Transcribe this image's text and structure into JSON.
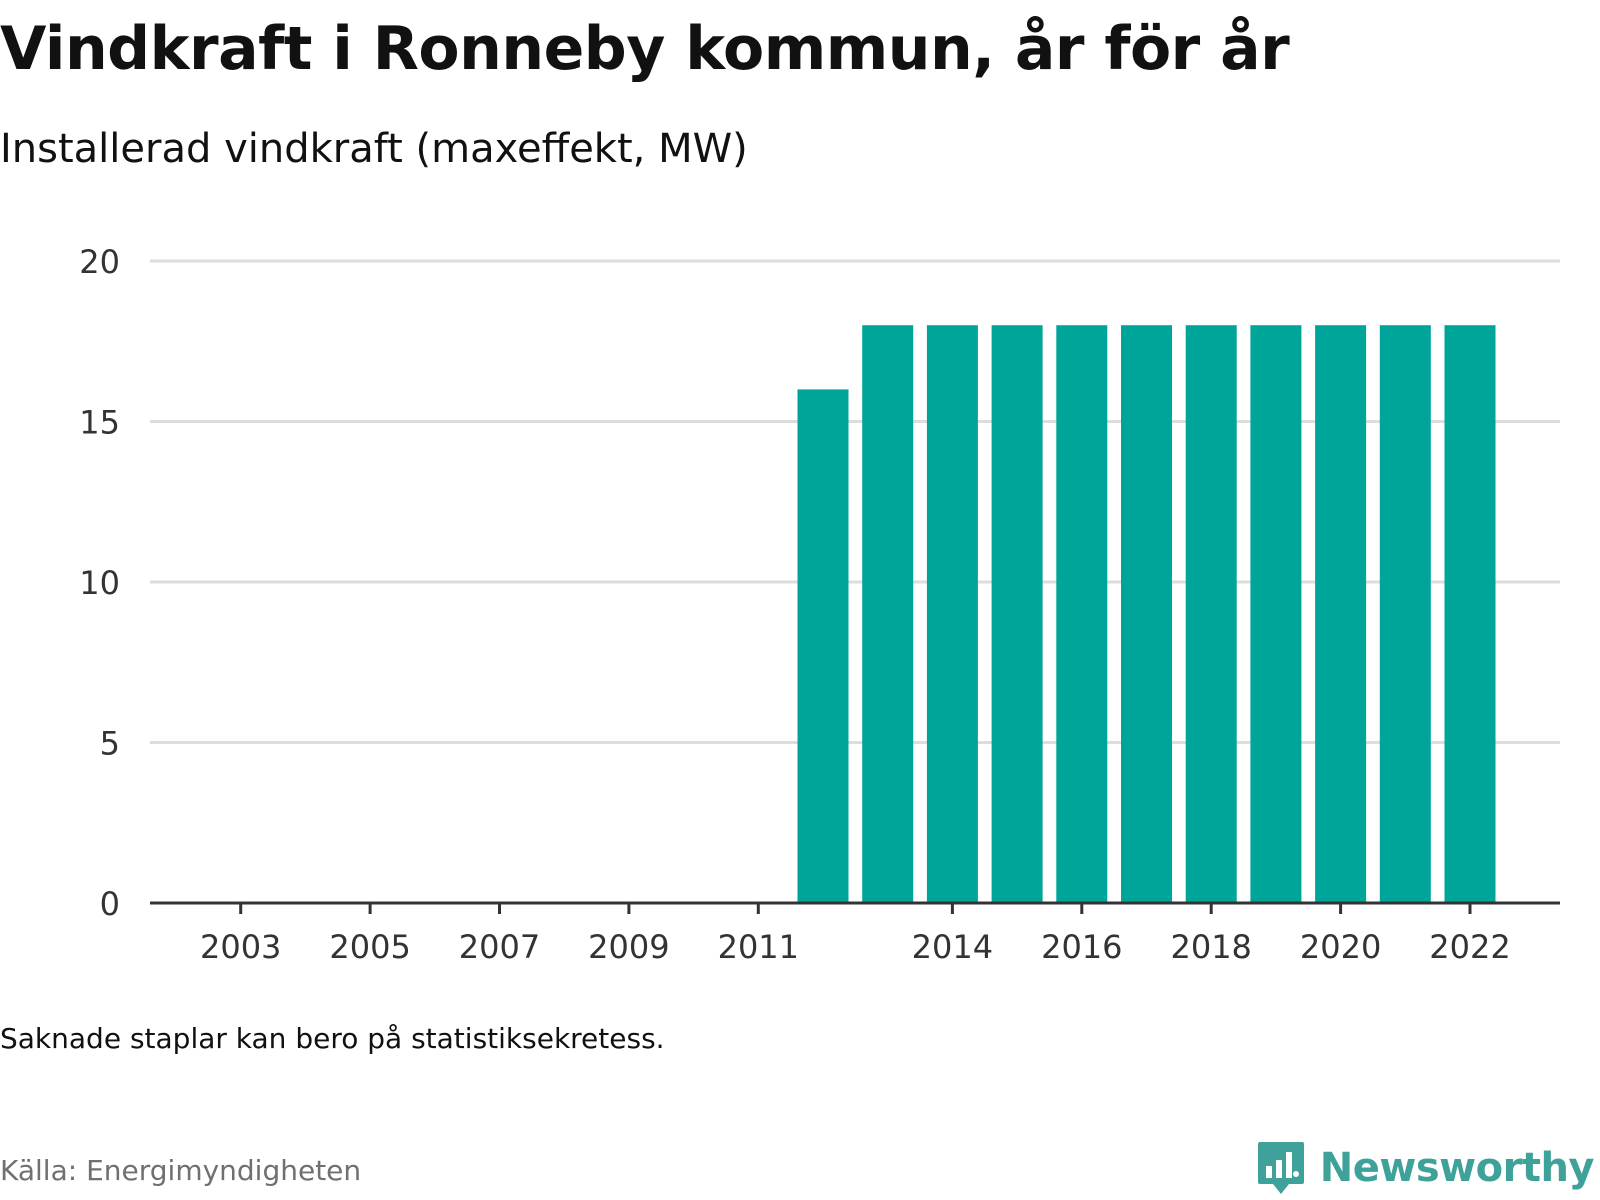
{
  "title": "Vindkraft i Ronneby kommun, år för år",
  "subtitle": "Installerad vindkraft (maxeffekt, MW)",
  "note": "Saknade staplar kan bero på statistiksekretess.",
  "source": "Källa: Energimyndigheten",
  "logo": {
    "text": "Newsworthy",
    "icon": "bar-chart-speech-bubble-icon"
  },
  "colors": {
    "bar": "#00a59a",
    "grid": "#dddddd",
    "axis": "#333333",
    "logo": "#3fa29a"
  },
  "chart_data": {
    "type": "bar",
    "title": "Vindkraft i Ronneby kommun, år för år",
    "subtitle": "Installerad vindkraft (maxeffekt, MW)",
    "xlabel": "",
    "ylabel": "",
    "categories": [
      2002,
      2003,
      2004,
      2005,
      2006,
      2007,
      2008,
      2009,
      2010,
      2011,
      2012,
      2013,
      2014,
      2015,
      2016,
      2017,
      2018,
      2019,
      2020,
      2021,
      2022
    ],
    "values": [
      0,
      0,
      0,
      0,
      0,
      0,
      0,
      0,
      0,
      0,
      16,
      18,
      18,
      18,
      18,
      18,
      18,
      18,
      18,
      18,
      18
    ],
    "ylim": [
      0,
      20
    ],
    "yticks": [
      0,
      5,
      10,
      15,
      20
    ],
    "xticks": [
      2003,
      2005,
      2007,
      2009,
      2011,
      2014,
      2016,
      2018,
      2020,
      2022
    ],
    "grid": true,
    "legend": "none"
  }
}
